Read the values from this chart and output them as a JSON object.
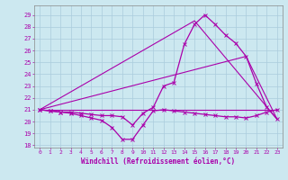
{
  "xlabel": "Windchill (Refroidissement éolien,°C)",
  "background_color": "#cce8f0",
  "grid_color": "#aaccdd",
  "line_color": "#aa00aa",
  "x_ticks": [
    0,
    1,
    2,
    3,
    4,
    5,
    6,
    7,
    8,
    9,
    10,
    11,
    12,
    13,
    14,
    15,
    16,
    17,
    18,
    19,
    20,
    21,
    22,
    23
  ],
  "y_ticks": [
    18,
    19,
    20,
    21,
    22,
    23,
    24,
    25,
    26,
    27,
    28,
    29
  ],
  "ylim": [
    17.8,
    29.8
  ],
  "xlim": [
    -0.5,
    23.5
  ],
  "series": [
    {
      "x": [
        0,
        1,
        2,
        3,
        4,
        5,
        6,
        7,
        8,
        9,
        10,
        11,
        12,
        13,
        14,
        15,
        16,
        17,
        18,
        19,
        20,
        21,
        22,
        23
      ],
      "y": [
        21,
        21,
        21,
        21,
        21,
        21,
        21,
        21,
        21,
        21,
        21,
        21,
        21,
        21,
        21,
        21,
        21,
        21,
        21,
        21,
        21,
        21,
        21,
        21
      ],
      "marker": false,
      "linewidth": 0.8
    },
    {
      "x": [
        0,
        1,
        2,
        3,
        4,
        5,
        6,
        7,
        8,
        9,
        10,
        11,
        12,
        13,
        14,
        15,
        16,
        17,
        18,
        19,
        20,
        21,
        22,
        23
      ],
      "y": [
        21,
        20.9,
        20.8,
        20.7,
        20.5,
        20.3,
        20.1,
        19.5,
        18.5,
        18.5,
        19.7,
        20.9,
        21.0,
        20.9,
        20.8,
        20.7,
        20.6,
        20.5,
        20.4,
        20.4,
        20.3,
        20.5,
        20.8,
        21.0
      ],
      "marker": true,
      "linewidth": 0.9
    },
    {
      "x": [
        0,
        1,
        2,
        3,
        4,
        5,
        6,
        7,
        8,
        9,
        10,
        11,
        12,
        13,
        14,
        15,
        16,
        17,
        18,
        19,
        20,
        21,
        22,
        23
      ],
      "y": [
        21,
        20.9,
        20.8,
        20.8,
        20.7,
        20.6,
        20.5,
        20.5,
        20.4,
        19.7,
        20.7,
        21.2,
        23.0,
        23.3,
        26.5,
        28.2,
        29.0,
        28.2,
        27.3,
        26.6,
        25.5,
        23.2,
        21.2,
        20.2
      ],
      "marker": true,
      "linewidth": 0.9
    },
    {
      "comment": "diagonal straight line from 0->15 (21->28.5) then 15->23 (28.5->20.2)",
      "x": [
        0,
        15,
        23
      ],
      "y": [
        21,
        28.5,
        20.2
      ],
      "marker": false,
      "linewidth": 0.8
    },
    {
      "comment": "second diagonal line from 0->20 (21->25.5) then 20->23 (25.5->20.2)",
      "x": [
        0,
        20,
        23
      ],
      "y": [
        21,
        25.5,
        20.2
      ],
      "marker": false,
      "linewidth": 0.8
    }
  ]
}
